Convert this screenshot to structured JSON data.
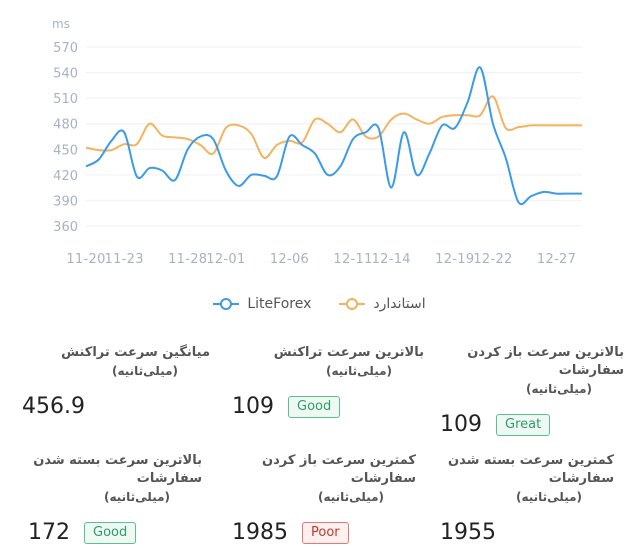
{
  "chart_data": {
    "type": "line",
    "unit_label": "ms",
    "x": [
      "11-20",
      "11-21",
      "11-22",
      "11-23",
      "11-24",
      "11-25",
      "11-26",
      "11-27",
      "11-28",
      "11-29",
      "11-30",
      "12-01",
      "12-02",
      "12-03",
      "12-04",
      "12-05",
      "12-06",
      "12-07",
      "12-08",
      "12-09",
      "12-10",
      "12-11",
      "12-12",
      "12-13",
      "12-14",
      "12-15",
      "12-16",
      "12-17",
      "12-18",
      "12-19",
      "12-20",
      "12-21",
      "12-22",
      "12-23",
      "12-24",
      "12-25",
      "12-26",
      "12-27",
      "12-28",
      "12-29"
    ],
    "x_tick_labels": [
      "11-20",
      "11-23",
      "11-28",
      "12-01",
      "12-06",
      "12-11",
      "12-14",
      "12-19",
      "12-22",
      "12-27"
    ],
    "y_ticks": [
      360,
      390,
      420,
      450,
      480,
      510,
      540,
      570
    ],
    "ylim": [
      360,
      570
    ],
    "series": [
      {
        "name": "LiteForex",
        "color": "#3b9be8",
        "values": [
          430,
          438,
          460,
          470,
          418,
          428,
          425,
          414,
          450,
          465,
          462,
          425,
          407,
          420,
          419,
          418,
          465,
          455,
          445,
          420,
          430,
          462,
          470,
          475,
          405,
          470,
          420,
          445,
          478,
          475,
          505,
          546,
          480,
          440,
          388,
          395,
          400,
          398,
          398,
          398
        ]
      },
      {
        "name": "استاندارد",
        "color": "#f4b35f",
        "values": [
          452,
          449,
          449,
          456,
          456,
          480,
          466,
          464,
          462,
          455,
          445,
          475,
          478,
          468,
          440,
          455,
          460,
          458,
          485,
          480,
          470,
          485,
          465,
          465,
          485,
          492,
          485,
          480,
          488,
          490,
          490,
          490,
          512,
          475,
          476,
          478,
          478,
          478,
          478,
          478
        ]
      }
    ]
  },
  "stats": [
    {
      "label": "بالاترین سرعت باز کردن سفارشات",
      "sub": "(میلی‌ثانیه)",
      "value": "109",
      "badge": "Great"
    },
    {
      "label": "بالاترین سرعت تراکنش",
      "sub": "(میلی‌ثانیه)",
      "value": "109",
      "badge": "Good"
    },
    {
      "label": "میانگین سرعت تراکنش",
      "sub": "(میلی‌ثانیه)",
      "value": "456.9",
      "badge": ""
    },
    {
      "label": "کمترین سرعت بسته شدن  سفارشات",
      "sub": "(میلی‌ثانیه)",
      "value": "1955",
      "badge": ""
    },
    {
      "label": "کمترین سرعت باز کردن سفارشات",
      "sub": "(میلی‌ثانیه)",
      "value": "1985",
      "badge": "Poor"
    },
    {
      "label": "بالاترین سرعت بسته شدن  سفارشات",
      "sub": "(میلی‌ثانیه)",
      "value": "172",
      "badge": "Good"
    }
  ]
}
